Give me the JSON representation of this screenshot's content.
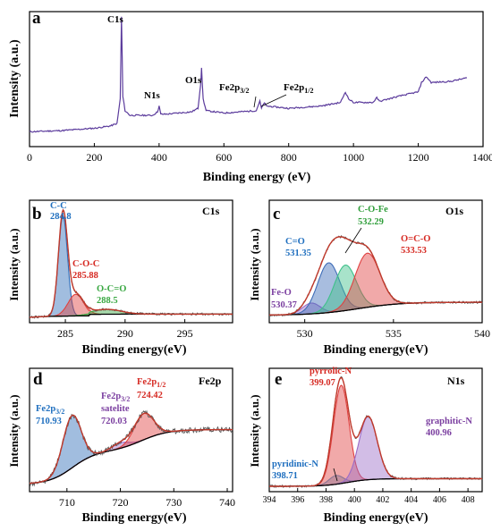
{
  "chart_data": [
    {
      "panel": "a",
      "type": "line",
      "xlabel": "Binding energy (eV)",
      "ylabel": "Intensity (a.u.)",
      "xlim": [
        0,
        1400
      ],
      "xticks": [
        0,
        200,
        400,
        600,
        800,
        1000,
        1200,
        1400
      ],
      "color": "#5b3b9c",
      "series": [
        {
          "x": [
            0,
            100,
            200,
            250,
            270,
            280,
            284,
            288,
            295,
            310,
            380,
            395,
            400,
            405,
            420,
            500,
            520,
            528,
            531,
            536,
            545,
            600,
            700,
            705,
            711,
            716,
            725,
            730,
            800,
            900,
            960,
            975,
            985,
            1000,
            1060,
            1072,
            1080,
            1150,
            1200,
            1210,
            1225,
            1240,
            1300,
            1350
          ],
          "y": [
            0.02,
            0.03,
            0.05,
            0.07,
            0.09,
            0.3,
            1.0,
            0.32,
            0.2,
            0.16,
            0.16,
            0.19,
            0.24,
            0.17,
            0.17,
            0.19,
            0.22,
            0.42,
            0.56,
            0.3,
            0.2,
            0.18,
            0.2,
            0.24,
            0.28,
            0.22,
            0.27,
            0.24,
            0.22,
            0.24,
            0.27,
            0.36,
            0.3,
            0.27,
            0.27,
            0.31,
            0.28,
            0.33,
            0.36,
            0.44,
            0.49,
            0.44,
            0.45,
            0.48
          ]
        }
      ],
      "annotations": [
        {
          "text": "C1s",
          "x": 284
        },
        {
          "text": "N1s",
          "x": 400
        },
        {
          "text": "O1s",
          "x": 531
        },
        {
          "text": "Fe2p3/2",
          "x": 711
        },
        {
          "text": "Fe2p1/2",
          "x": 725
        }
      ]
    },
    {
      "panel": "b",
      "region": "C1s",
      "type": "line",
      "xlabel": "Binding energy(eV)",
      "ylabel": "Intensity (a.u.)",
      "xlim": [
        282,
        299
      ],
      "xticks": [
        285,
        290,
        295
      ],
      "series": [
        {
          "role": "raw",
          "color": "#333333"
        },
        {
          "role": "envelope",
          "color": "#c0392b"
        },
        {
          "role": "background",
          "color": "#000000"
        },
        {
          "name": "C-C",
          "center": 284.8,
          "height": 0.93,
          "sigma": 0.38,
          "color": "#2e6cb8"
        },
        {
          "name": "C-O-C",
          "center": 285.88,
          "height": 0.2,
          "sigma": 0.65,
          "color": "#e0413d"
        },
        {
          "name": "O-C=O",
          "center": 288.5,
          "height": 0.045,
          "sigma": 1.2,
          "color": "#3aa843"
        }
      ],
      "annotations": [
        {
          "name": "C-C",
          "value": "284.8",
          "color": "#1f6fbf"
        },
        {
          "name": "C-O-C",
          "value": "285.88",
          "color": "#d62a23"
        },
        {
          "name": "O-C=O",
          "value": "288.5",
          "color": "#3aa843"
        }
      ]
    },
    {
      "panel": "c",
      "region": "O1s",
      "type": "line",
      "xlabel": "Binding energy(eV)",
      "ylabel": "Intensity (a.u.)",
      "xlim": [
        528,
        540
      ],
      "xticks": [
        530,
        535,
        540
      ],
      "series": [
        {
          "role": "raw",
          "color": "#333333"
        },
        {
          "role": "envelope",
          "color": "#c0392b"
        },
        {
          "role": "background",
          "color": "#000000"
        },
        {
          "name": "Fe-O",
          "center": 530.37,
          "height": 0.1,
          "sigma": 0.5,
          "color": "#9b6cc8"
        },
        {
          "name": "C=O",
          "center": 531.35,
          "height": 0.46,
          "sigma": 0.62,
          "color": "#3f6db8"
        },
        {
          "name": "C-O-Fe",
          "center": 532.29,
          "height": 0.42,
          "sigma": 0.62,
          "color": "#3fc08a"
        },
        {
          "name": "O=C-O",
          "center": 533.53,
          "height": 0.5,
          "sigma": 0.7,
          "color": "#e04141"
        }
      ],
      "annotations": [
        {
          "name": "C=O",
          "value": "531.35",
          "color": "#1f6fbf"
        },
        {
          "name": "C-O-Fe",
          "value": "532.29",
          "color": "#2f9e3a"
        },
        {
          "name": "O=C-O",
          "value": "533.53",
          "color": "#d62a23"
        },
        {
          "name": "Fe-O",
          "value": "530.37",
          "color": "#7b3fa0"
        }
      ]
    },
    {
      "panel": "d",
      "region": "Fe2p",
      "type": "line",
      "xlabel": "Binding energy(eV)",
      "ylabel": "Intensity (a.u.)",
      "xlim": [
        703,
        741
      ],
      "xticks": [
        710,
        720,
        730,
        740
      ],
      "series": [
        {
          "role": "raw",
          "color": "#333333"
        },
        {
          "role": "envelope",
          "color": "#c0392b"
        },
        {
          "role": "background",
          "color": "#000000"
        },
        {
          "name": "Fe2p3/2",
          "center": 710.93,
          "height": 0.48,
          "sigma": 1.7,
          "color": "#2e6cb8"
        },
        {
          "name": "Fe2p3/2 satelite",
          "center": 720.03,
          "height": 0.05,
          "sigma": 1.6,
          "color": "#9b6cc8"
        },
        {
          "name": "Fe2p1/2",
          "center": 724.42,
          "height": 0.24,
          "sigma": 1.8,
          "color": "#e04141"
        }
      ],
      "annotations": [
        {
          "name": "Fe2p3/2",
          "value": "710.93",
          "color": "#1f6fbf"
        },
        {
          "name": "Fe2p3/2",
          "extra": "satelite",
          "value": "720.03",
          "color": "#7b3fa0"
        },
        {
          "name": "Fe2p1/2",
          "value": "724.42",
          "color": "#d62a23"
        }
      ]
    },
    {
      "panel": "e",
      "region": "N1s",
      "type": "line",
      "xlabel": "Binding energy(eV)",
      "ylabel": "Intensity (a.u.)",
      "xlim": [
        394,
        409
      ],
      "xticks": [
        394,
        396,
        398,
        400,
        402,
        404,
        406,
        408
      ],
      "series": [
        {
          "role": "raw",
          "color": "#333333"
        },
        {
          "role": "envelope",
          "color": "#c0392b"
        },
        {
          "role": "background",
          "color": "#000000"
        },
        {
          "name": "pyridinic-N",
          "center": 398.71,
          "height": 0.08,
          "sigma": 0.5,
          "color": "#4a9fd8"
        },
        {
          "name": "pyrrolic-N",
          "center": 399.07,
          "height": 0.9,
          "sigma": 0.55,
          "color": "#e04141"
        },
        {
          "name": "graphitic-N",
          "center": 400.96,
          "height": 0.58,
          "sigma": 0.65,
          "color": "#9b6cc8"
        }
      ],
      "annotations": [
        {
          "name": "pyrrolic-N",
          "value": "399.07",
          "color": "#d62a23"
        },
        {
          "name": "graphitic-N",
          "value": "400.96",
          "color": "#7b3fa0"
        },
        {
          "name": "pyridinic-N",
          "value": "398.71",
          "color": "#1f6fbf"
        }
      ]
    }
  ]
}
